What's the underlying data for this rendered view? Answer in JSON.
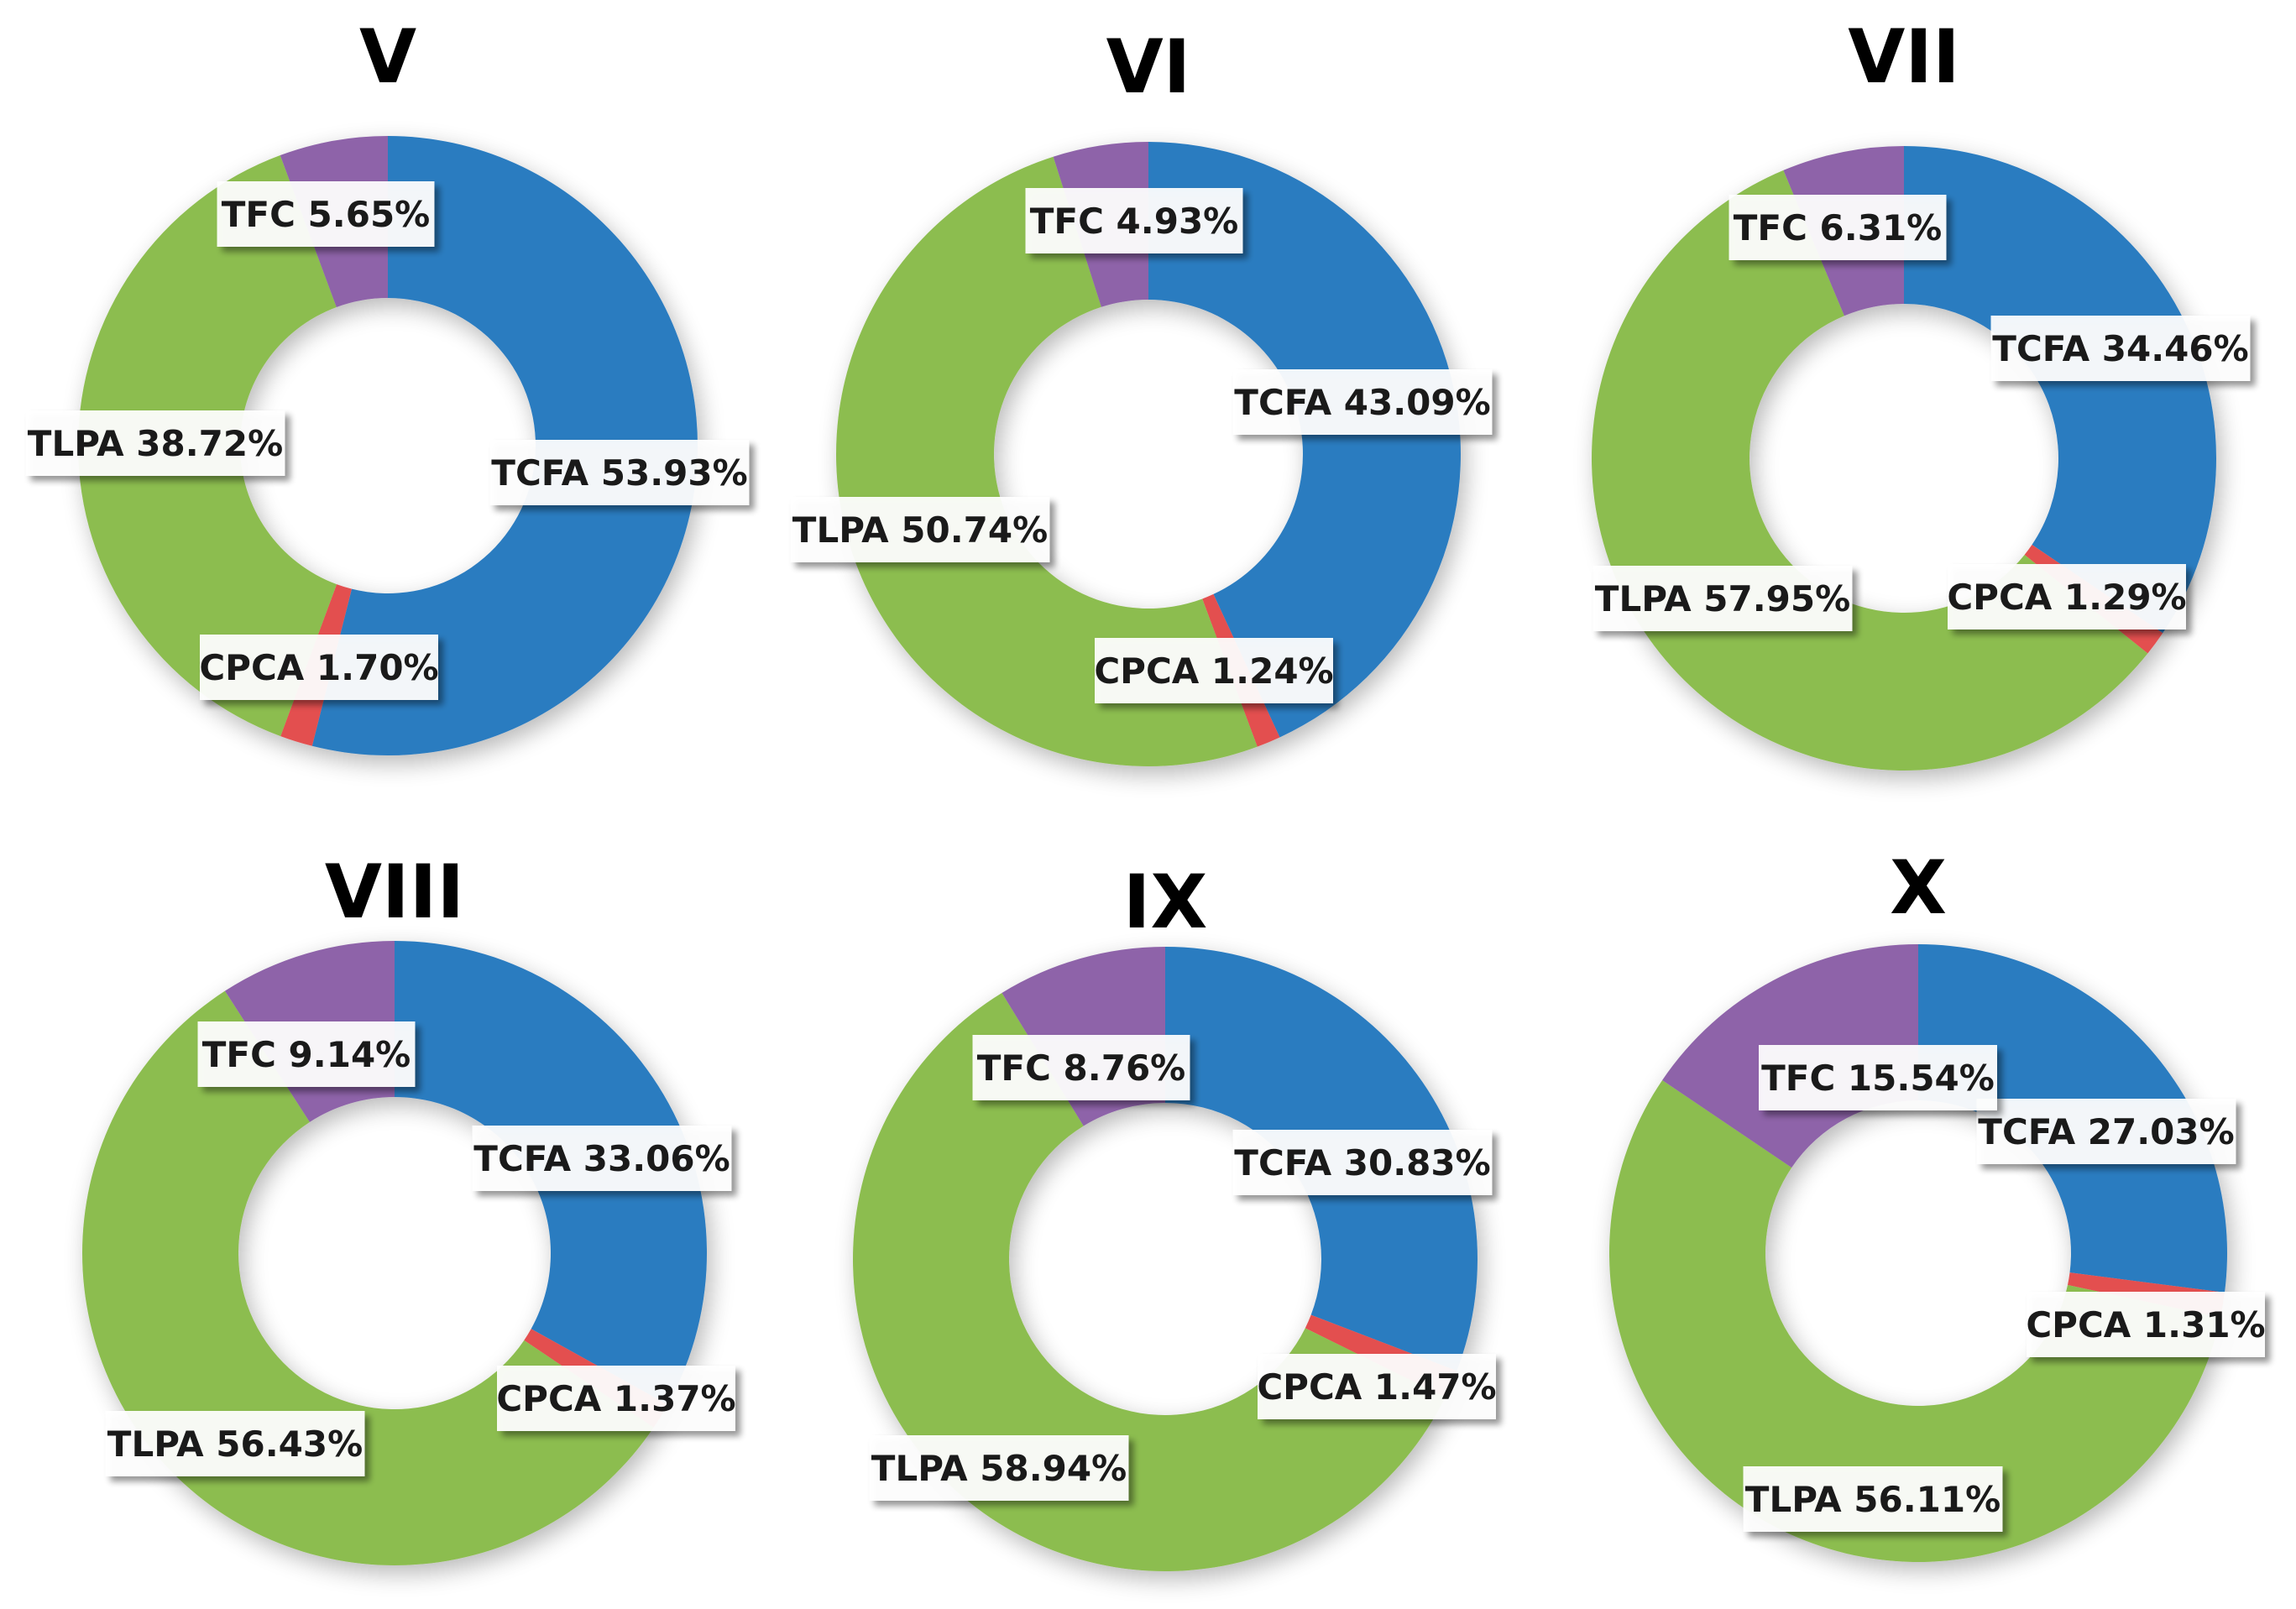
{
  "colors": {
    "TCFA": "#2b7bc0",
    "CPCA": "#e34f4f",
    "TLPA": "#8cbd4f",
    "TFC": "#8e64a9"
  },
  "chart_data": [
    {
      "type": "pie",
      "title": "V",
      "categories": [
        "TCFA",
        "CPCA",
        "TLPA",
        "TFC"
      ],
      "values": [
        53.93,
        1.7,
        38.72,
        5.65
      ],
      "labels": [
        "TCFA 53.93%",
        "CPCA 1.70%",
        "TLPA 38.72%",
        "TFC 5.65%"
      ]
    },
    {
      "type": "pie",
      "title": "VI",
      "categories": [
        "TCFA",
        "CPCA",
        "TLPA",
        "TFC"
      ],
      "values": [
        43.09,
        1.24,
        50.74,
        4.93
      ],
      "labels": [
        "TCFA 43.09%",
        "CPCA 1.24%",
        "TLPA 50.74%",
        "TFC 4.93%"
      ]
    },
    {
      "type": "pie",
      "title": "VII",
      "categories": [
        "TCFA",
        "CPCA",
        "TLPA",
        "TFC"
      ],
      "values": [
        34.46,
        1.29,
        57.95,
        6.31
      ],
      "labels": [
        "TCFA 34.46%",
        "CPCA 1.29%",
        "TLPA 57.95%",
        "TFC 6.31%"
      ]
    },
    {
      "type": "pie",
      "title": "VIII",
      "categories": [
        "TCFA",
        "CPCA",
        "TLPA",
        "TFC"
      ],
      "values": [
        33.06,
        1.37,
        56.43,
        9.14
      ],
      "labels": [
        "TCFA 33.06%",
        "CPCA 1.37%",
        "TLPA 56.43%",
        "TFC 9.14%"
      ]
    },
    {
      "type": "pie",
      "title": "IX",
      "categories": [
        "TCFA",
        "CPCA",
        "TLPA",
        "TFC"
      ],
      "values": [
        30.83,
        1.47,
        58.94,
        8.76
      ],
      "labels": [
        "TCFA 30.83%",
        "CPCA 1.47%",
        "TLPA 58.94%",
        "TFC 8.76%"
      ]
    },
    {
      "type": "pie",
      "title": "X",
      "categories": [
        "TCFA",
        "CPCA",
        "TLPA",
        "TFC"
      ],
      "values": [
        27.03,
        1.31,
        56.11,
        15.54
      ],
      "labels": [
        "TCFA 27.03%",
        "CPCA 1.31%",
        "TLPA 56.11%",
        "TFC 15.54%"
      ]
    }
  ]
}
